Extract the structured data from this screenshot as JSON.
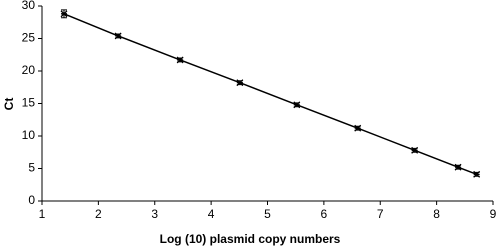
{
  "chart_data": {
    "type": "line",
    "x_label": "Log (10) plasmid copy numbers",
    "y_label": "Ct",
    "x": [
      1.39,
      2.35,
      3.45,
      4.51,
      5.52,
      6.6,
      7.61,
      8.38,
      8.71
    ],
    "series": [
      {
        "color": "#000000",
        "values": [
          28.8,
          25.4,
          21.7,
          18.2,
          14.8,
          11.2,
          7.8,
          5.2,
          4.1
        ],
        "errors": [
          0.6,
          0.3,
          0.3,
          0.3,
          0.3,
          0.3,
          0.3,
          0.3,
          0.3
        ]
      }
    ],
    "xlim": [
      1,
      9
    ],
    "xticks": [
      1,
      2,
      3,
      4,
      5,
      6,
      7,
      8,
      9
    ],
    "ylim": [
      0,
      30
    ],
    "yticks": [
      0,
      5,
      10,
      15,
      20,
      25,
      30
    ],
    "grid": false
  }
}
